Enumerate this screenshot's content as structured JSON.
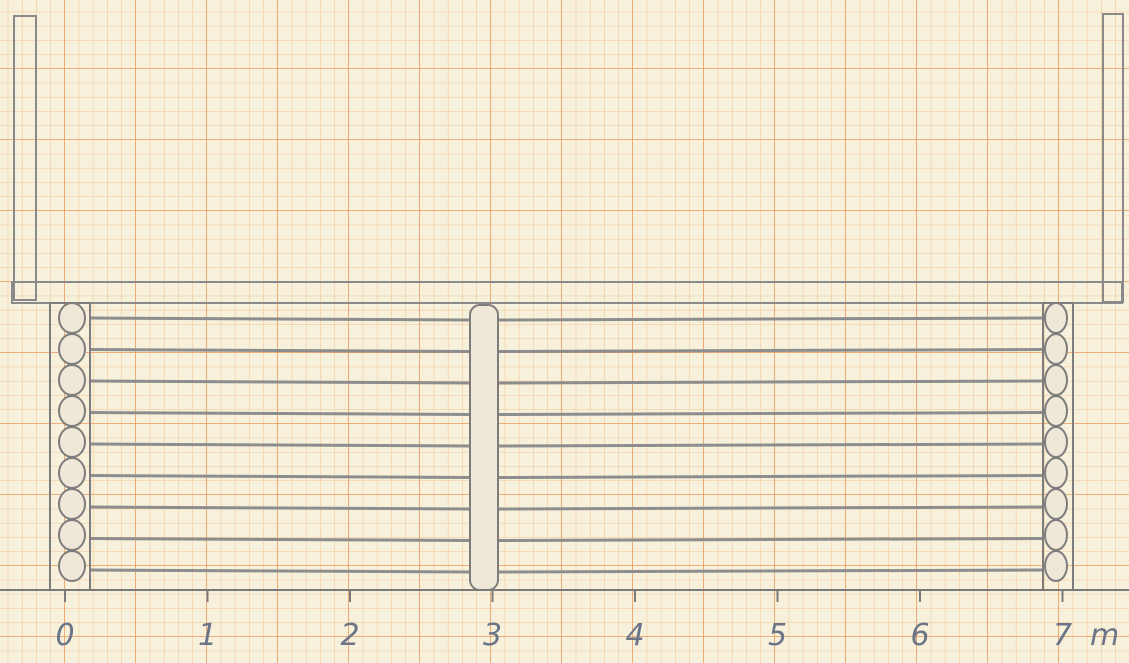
{
  "scale": {
    "labels": [
      "0",
      "1",
      "2",
      "3",
      "4",
      "5",
      "6",
      "7"
    ],
    "unit": "m"
  }
}
